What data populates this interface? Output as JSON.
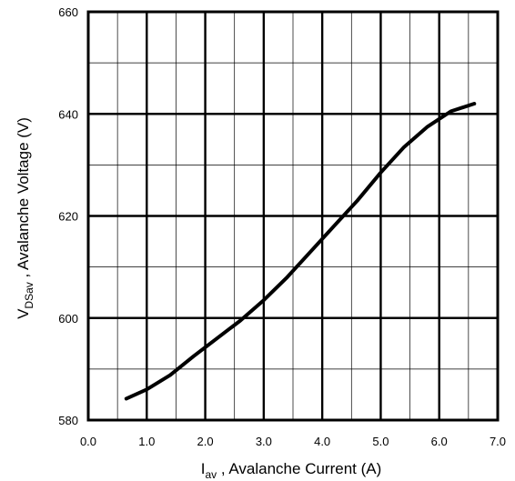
{
  "chart_data": {
    "type": "line",
    "title": "",
    "xlabel": {
      "main": "I",
      "sub": "av",
      "rest": " , Avalanche Current  (A)"
    },
    "ylabel": {
      "main": "V",
      "sub": "DSav",
      "rest": " , Avalanche Voltage (V)"
    },
    "xlim": [
      0.0,
      7.0
    ],
    "ylim": [
      580,
      660
    ],
    "x_ticks": [
      "0.0",
      "1.0",
      "2.0",
      "3.0",
      "4.0",
      "5.0",
      "6.0",
      "7.0"
    ],
    "y_ticks": [
      "580",
      "600",
      "620",
      "640",
      "660"
    ],
    "grid": true,
    "series": [
      {
        "x": [
          0.65,
          1.0,
          1.4,
          1.8,
          2.2,
          2.6,
          3.0,
          3.4,
          3.8,
          4.2,
          4.6,
          5.0,
          5.4,
          5.8,
          6.2,
          6.6
        ],
        "y": [
          584.2,
          586.0,
          588.8,
          592.5,
          596.0,
          599.5,
          603.5,
          608.0,
          613.0,
          618.0,
          623.0,
          628.5,
          633.5,
          637.5,
          640.5,
          642.0
        ]
      }
    ]
  }
}
